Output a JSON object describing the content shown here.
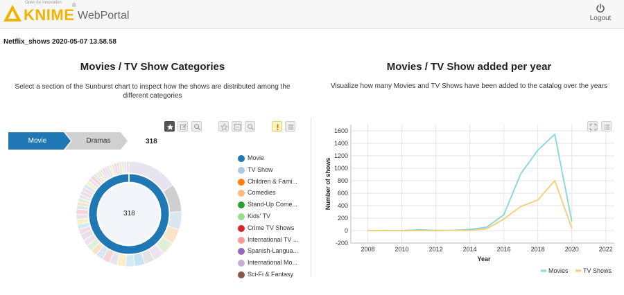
{
  "header": {
    "tagline": "Open for Innovation",
    "brand": "KNIME",
    "trademark": "®",
    "portal": "WebPortal",
    "logout_label": "Logout"
  },
  "workflow_title": "Netflix_shows 2020-05-07 13.58.58",
  "colors": {
    "brand_yellow": "#f0b400",
    "crumb_blue": "#1f77b4",
    "crumb_gray": "#d0d0d0",
    "movies_line": "#7fd8dc",
    "tvshows_line": "#f2cf6e"
  },
  "left_panel": {
    "title": "Movies / TV Show Categories",
    "subtitle": "Select a section of the Sunburst chart to inspect how the shows are distributed among the different categories",
    "toolbar_icons": [
      "star-icon",
      "edit-icon",
      "search-icon",
      "star-icon",
      "select-icon",
      "search-icon",
      "warning-icon",
      "menu-icon"
    ],
    "breadcrumb": [
      {
        "label": "Movie"
      },
      {
        "label": "Dramas"
      }
    ],
    "breadcrumb_count": "318",
    "center_value": "318",
    "legend": [
      {
        "label": "Movie",
        "color": "#1f77b4"
      },
      {
        "label": "TV Show",
        "color": "#aec7e8"
      },
      {
        "label": "Children & Fami...",
        "color": "#ff7f0e"
      },
      {
        "label": "Comedies",
        "color": "#ffbb78"
      },
      {
        "label": "Stand-Up Come...",
        "color": "#2ca02c"
      },
      {
        "label": "Kids' TV",
        "color": "#98df8a"
      },
      {
        "label": "Crime TV Shows",
        "color": "#d62728"
      },
      {
        "label": "International TV ...",
        "color": "#ff9896"
      },
      {
        "label": "Spanish-Langua...",
        "color": "#9467bd"
      },
      {
        "label": "International Mo...",
        "color": "#c5b0d5"
      },
      {
        "label": "Sci-Fi & Fantasy",
        "color": "#8c564b"
      }
    ]
  },
  "right_panel": {
    "title": "Movies / TV Show added per year",
    "subtitle": "Visualize how many Movies and TV Shows have been added to the catalog over the years",
    "toolbar_icons": [
      "fullscreen-icon",
      "menu-icon"
    ]
  },
  "chart_data": {
    "type": "line",
    "title": "",
    "xlabel": "Year",
    "ylabel": "Number of shows",
    "xlim": [
      2007,
      2022.5
    ],
    "ylim": [
      -200,
      1700
    ],
    "x_ticks": [
      2008,
      2010,
      2012,
      2014,
      2016,
      2018,
      2020,
      2022
    ],
    "y_ticks": [
      -200,
      0,
      200,
      400,
      600,
      800,
      1000,
      1200,
      1400,
      1600
    ],
    "grid": true,
    "legend_position": "bottom-right",
    "series": [
      {
        "name": "Movies",
        "color": "#7fd8dc",
        "x": [
          2008,
          2009,
          2010,
          2011,
          2012,
          2013,
          2014,
          2015,
          2016,
          2017,
          2018,
          2019,
          2020
        ],
        "y": [
          1,
          2,
          1,
          13,
          3,
          6,
          19,
          56,
          253,
          913,
          1290,
          1546,
          147
        ]
      },
      {
        "name": "TV Shows",
        "color": "#f2cf6e",
        "x": [
          2008,
          2009,
          2010,
          2011,
          2012,
          2013,
          2014,
          2015,
          2016,
          2017,
          2018,
          2019,
          2020
        ],
        "y": [
          1,
          0,
          0,
          0,
          0,
          5,
          6,
          30,
          185,
          387,
          491,
          803,
          37
        ]
      }
    ]
  }
}
